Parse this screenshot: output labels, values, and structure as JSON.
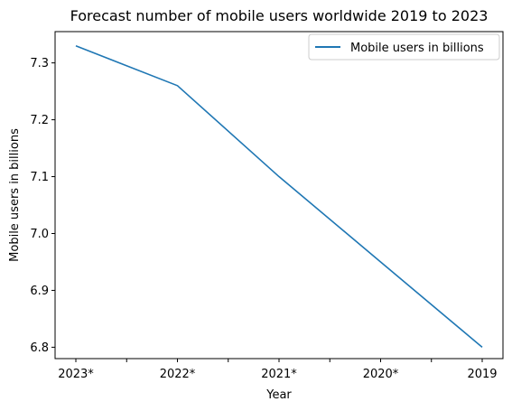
{
  "chart_data": {
    "type": "line",
    "title": "Forecast number of mobile users worldwide 2019 to 2023",
    "xlabel": "Year",
    "ylabel": "Mobile users in billions",
    "categories": [
      "2023*",
      "",
      "2022*",
      "",
      "2021*",
      "",
      "2020*",
      "",
      "2019"
    ],
    "x_major_labels": [
      "2023*",
      "2022*",
      "2021*",
      "2020*",
      "2019"
    ],
    "series": [
      {
        "name": "Mobile users in billions",
        "color": "#1f77b4",
        "x": [
          "2023*",
          "2022*",
          "2021*",
          "2020*",
          "2019"
        ],
        "values": [
          7.33,
          7.26,
          7.1,
          6.95,
          6.8
        ]
      }
    ],
    "ylim": [
      6.78,
      7.355
    ],
    "yticks": [
      6.8,
      6.9,
      7.0,
      7.1,
      7.2,
      7.3
    ],
    "ytick_labels": [
      "6.8",
      "6.9",
      "7.0",
      "7.1",
      "7.2",
      "7.3"
    ],
    "legend": {
      "placement": "upper right"
    },
    "grid": false
  }
}
